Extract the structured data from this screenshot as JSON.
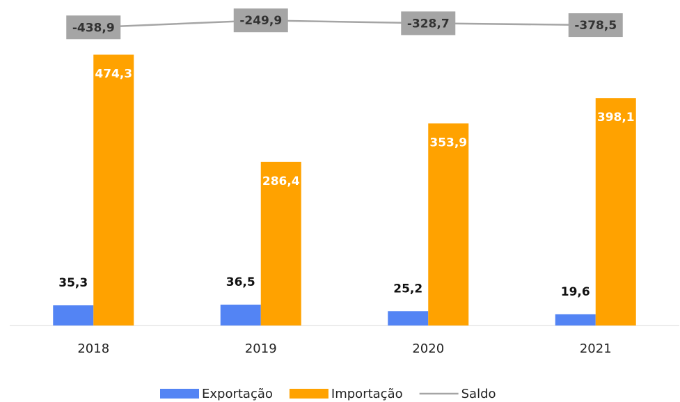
{
  "chart_data": {
    "type": "bar",
    "categories": [
      "2018",
      "2019",
      "2020",
      "2021"
    ],
    "series": [
      {
        "name": "Exportação",
        "color": "#5384f4",
        "values": [
          35.3,
          36.5,
          25.2,
          19.6
        ],
        "value_labels": [
          "35,3",
          "36,5",
          "25,2",
          "19,6"
        ]
      },
      {
        "name": "Importação",
        "color": "#ffa200",
        "values": [
          474.3,
          286.4,
          353.9,
          398.1
        ],
        "value_labels": [
          "474,3",
          "286,4",
          "353,9",
          "398,1"
        ]
      },
      {
        "name": "Saldo",
        "type": "line",
        "axis": "y2",
        "color": "#a5a5a5",
        "values": [
          -438.9,
          -249.9,
          -328.7,
          -378.5
        ],
        "value_labels": [
          "-438,9",
          "-249,9",
          "-328,7",
          "-378,5"
        ]
      }
    ],
    "ylim": [
      0,
      570
    ],
    "y2lim": [
      -8500,
      300
    ],
    "legend": "bottom"
  }
}
